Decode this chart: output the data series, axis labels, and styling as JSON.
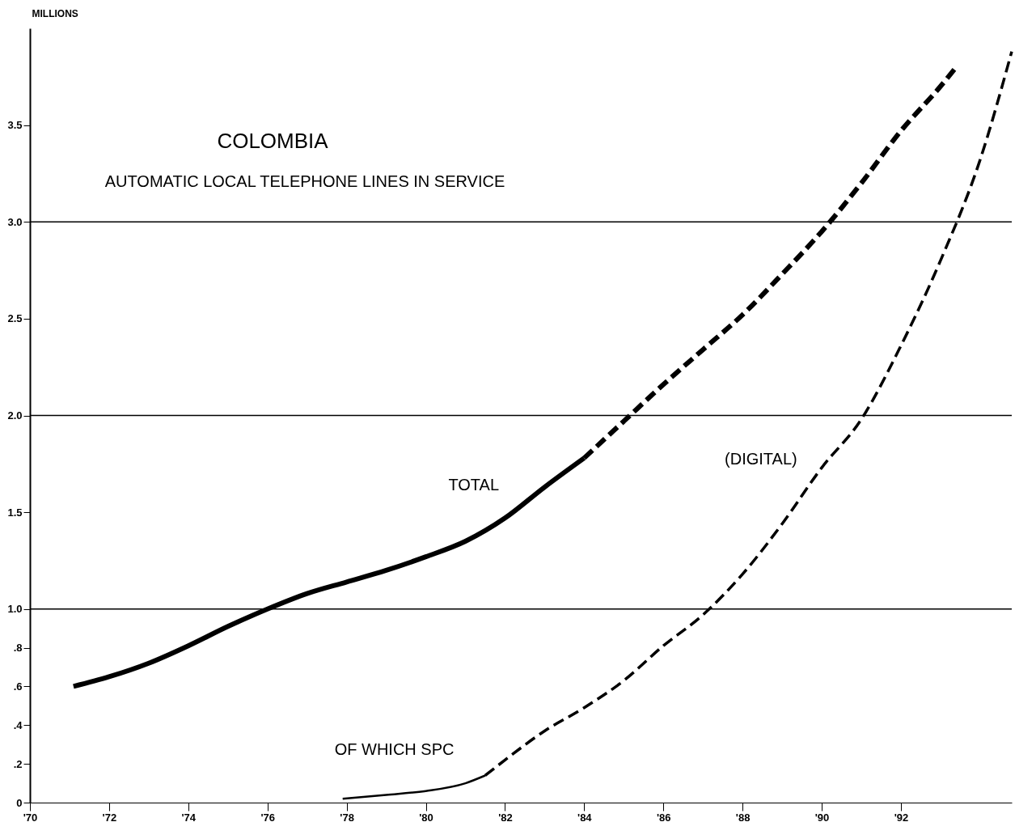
{
  "chart_data": {
    "type": "line",
    "title": "COLOMBIA",
    "subtitle": "AUTOMATIC LOCAL TELEPHONE LINES IN SERVICE",
    "ylabel": "MILLIONS",
    "xlim": [
      70,
      94.8
    ],
    "ylim": [
      0,
      4.0
    ],
    "xticks": [
      {
        "value": 70,
        "label": "'70"
      },
      {
        "value": 72,
        "label": "'72"
      },
      {
        "value": 74,
        "label": "'74"
      },
      {
        "value": 76,
        "label": "'76"
      },
      {
        "value": 78,
        "label": "'78"
      },
      {
        "value": 80,
        "label": "'80"
      },
      {
        "value": 82,
        "label": "'82"
      },
      {
        "value": 84,
        "label": "'84"
      },
      {
        "value": 86,
        "label": "'86"
      },
      {
        "value": 88,
        "label": "'88"
      },
      {
        "value": 90,
        "label": "'90"
      },
      {
        "value": 92,
        "label": "'92"
      }
    ],
    "yticks": [
      0,
      {
        "value": 0.2,
        "label": ".2"
      },
      {
        "value": 0.4,
        "label": ".4"
      },
      {
        "value": 0.6,
        "label": ".6"
      },
      {
        "value": 0.8,
        "label": ".8"
      },
      {
        "value": 1,
        "label": "1.0"
      },
      1.5,
      {
        "value": 2,
        "label": "2.0"
      },
      2.5,
      {
        "value": 3,
        "label": "3.0"
      },
      3.5
    ],
    "ref_lines": [
      {
        "axis": "y",
        "value": 1,
        "color": "#000000"
      },
      {
        "axis": "y",
        "value": 2,
        "color": "#000000"
      },
      {
        "axis": "y",
        "value": 3,
        "color": "#000000"
      }
    ],
    "series": [
      {
        "name": "TOTAL",
        "color": "#000000",
        "line_style": "solid",
        "x": [
          71.1,
          72,
          73,
          74,
          75,
          76,
          77,
          78,
          79,
          80,
          81,
          82,
          83,
          84
        ],
        "values": [
          0.6,
          0.65,
          0.72,
          0.81,
          0.91,
          1.0,
          1.08,
          1.14,
          1.2,
          1.27,
          1.35,
          1.47,
          1.63,
          1.78
        ]
      },
      {
        "color": "#000000",
        "line_style": "dashed",
        "x": [
          84,
          85,
          86,
          87,
          88,
          89,
          90,
          91,
          92,
          93,
          93.4
        ],
        "values": [
          1.78,
          1.97,
          2.16,
          2.34,
          2.52,
          2.73,
          2.95,
          3.2,
          3.47,
          3.7,
          3.8
        ]
      },
      {
        "name": "OF WHICH SPC",
        "color": "#000000",
        "line_style": "solid",
        "x": [
          77.9,
          79,
          80,
          81,
          81.5
        ],
        "values": [
          0.02,
          0.04,
          0.06,
          0.1,
          0.14
        ]
      },
      {
        "name": "(DIGITAL)",
        "color": "#000000",
        "line_style": "dashed",
        "x": [
          81.5,
          82,
          83,
          84,
          85,
          86,
          87,
          88,
          89,
          90,
          91,
          92,
          93,
          94,
          94.8
        ],
        "values": [
          0.14,
          0.22,
          0.37,
          0.49,
          0.63,
          0.81,
          0.97,
          1.18,
          1.44,
          1.73,
          1.98,
          2.36,
          2.8,
          3.32,
          3.88
        ]
      }
    ]
  }
}
